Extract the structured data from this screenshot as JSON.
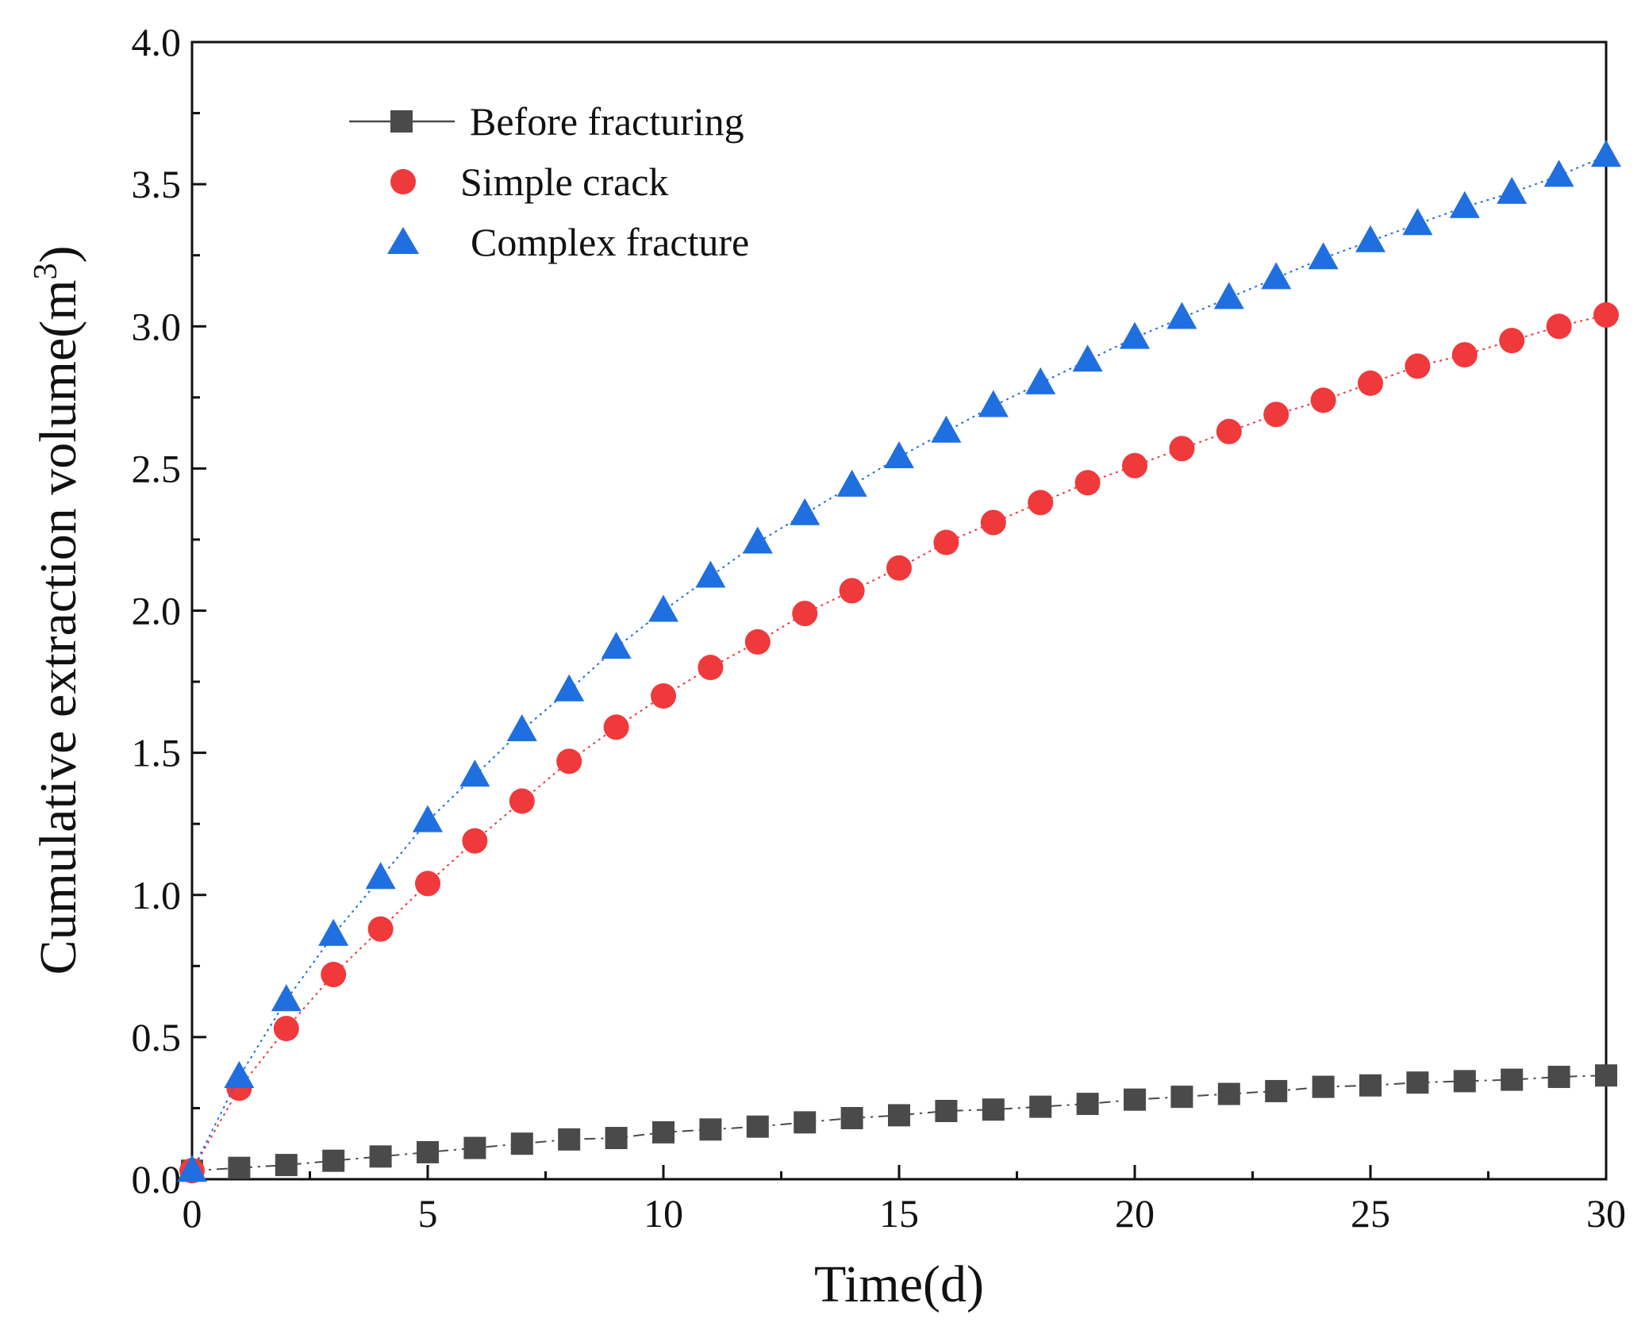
{
  "chart_data": {
    "type": "line",
    "title": "",
    "xlabel": "Time(d)",
    "ylabel": "Cumulative extraction volume(m",
    "ylabel_superscript": "3",
    "ylabel_close": ")",
    "xlim": [
      0,
      30
    ],
    "ylim": [
      0,
      4.0
    ],
    "xticks": [
      0,
      5,
      10,
      15,
      20,
      25,
      30
    ],
    "xtick_labels": [
      "0",
      "5",
      "10",
      "15",
      "20",
      "25",
      "30"
    ],
    "yticks": [
      0,
      0.5,
      1.0,
      1.5,
      2.0,
      2.5,
      3.0,
      3.5,
      4.0
    ],
    "ytick_labels": [
      "0.0",
      "0.5",
      "1.0",
      "1.5",
      "2.0",
      "2.5",
      "3.0",
      "3.5",
      "4.0"
    ],
    "grid": false,
    "legend_position": "top-left",
    "x": [
      0,
      1,
      2,
      3,
      4,
      5,
      6,
      7,
      8,
      9,
      10,
      11,
      12,
      13,
      14,
      15,
      16,
      17,
      18,
      19,
      20,
      21,
      22,
      23,
      24,
      25,
      26,
      27,
      28,
      29,
      30
    ],
    "series": [
      {
        "name": "Before fracturing",
        "marker": "square",
        "color": "#4a4a4a",
        "line_style": "dash-dot",
        "values": [
          0.03,
          0.04,
          0.05,
          0.065,
          0.08,
          0.095,
          0.11,
          0.125,
          0.14,
          0.145,
          0.165,
          0.175,
          0.185,
          0.2,
          0.215,
          0.225,
          0.24,
          0.245,
          0.255,
          0.265,
          0.28,
          0.29,
          0.3,
          0.31,
          0.325,
          0.33,
          0.34,
          0.345,
          0.35,
          0.36,
          0.365
        ]
      },
      {
        "name": "Simple crack",
        "marker": "circle",
        "color": "#f0393b",
        "line_style": "dotted",
        "values": [
          0.03,
          0.32,
          0.53,
          0.72,
          0.88,
          1.04,
          1.19,
          1.33,
          1.47,
          1.59,
          1.7,
          1.8,
          1.89,
          1.99,
          2.07,
          2.15,
          2.24,
          2.31,
          2.38,
          2.45,
          2.51,
          2.57,
          2.63,
          2.69,
          2.74,
          2.8,
          2.86,
          2.9,
          2.95,
          3.0,
          3.04
        ]
      },
      {
        "name": "Complex fracture",
        "marker": "triangle",
        "color": "#1f6fe0",
        "line_style": "dotted",
        "values": [
          0.03,
          0.36,
          0.63,
          0.86,
          1.06,
          1.26,
          1.42,
          1.58,
          1.72,
          1.87,
          2.0,
          2.12,
          2.24,
          2.34,
          2.44,
          2.54,
          2.63,
          2.72,
          2.8,
          2.88,
          2.96,
          3.03,
          3.1,
          3.17,
          3.24,
          3.3,
          3.36,
          3.42,
          3.47,
          3.53,
          3.6
        ]
      }
    ]
  }
}
